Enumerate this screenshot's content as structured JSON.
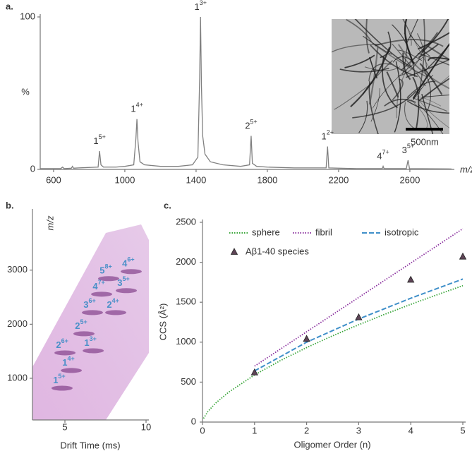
{
  "chart_data": [
    {
      "type": "line",
      "panel": "a.",
      "xlabel": "m/z",
      "ylabel": "%",
      "color": "#808080",
      "x": [
        525,
        640,
        650,
        660,
        700,
        706,
        712,
        740,
        850,
        858,
        866,
        880,
        950,
        1000,
        1050,
        1062,
        1068,
        1074,
        1085,
        1110,
        1200,
        1300,
        1380,
        1410,
        1420,
        1425,
        1430,
        1437,
        1450,
        1480,
        1550,
        1650,
        1700,
        1709,
        1716,
        1740,
        1800,
        1950,
        2130,
        2138,
        2145,
        2300,
        2445,
        2450,
        2455,
        2580,
        2590,
        2598,
        2834
      ],
      "values": [
        0.5,
        0.5,
        1.5,
        0.5,
        0.8,
        2,
        0.8,
        1,
        1.5,
        12,
        3,
        1.5,
        1.5,
        2,
        3,
        20,
        33,
        18,
        5,
        3,
        2,
        2,
        3,
        8,
        60,
        100,
        55,
        22,
        10,
        5,
        3,
        2,
        3,
        22,
        4,
        2,
        1.5,
        1,
        1,
        15,
        1,
        0.5,
        0.5,
        2,
        0.5,
        0.5,
        6,
        0.5,
        0.3
      ],
      "xlim": [
        525,
        2834
      ],
      "ylim": [
        0,
        100
      ],
      "xticks": [
        600,
        1000,
        1400,
        1800,
        2200,
        2600
      ],
      "yticks": [
        0,
        100
      ],
      "annotations": [
        {
          "text": "1",
          "superscript": "5+",
          "x": 858
        },
        {
          "text": "1",
          "superscript": "4+",
          "x": 1068
        },
        {
          "text": "1",
          "superscript": "3+",
          "x": 1425
        },
        {
          "text": "2",
          "superscript": "5+",
          "x": 1709
        },
        {
          "text": "1",
          "superscript": "2+",
          "x": 2138
        },
        {
          "text": "4",
          "superscript": "7+",
          "x": 2450
        },
        {
          "text": "3",
          "superscript": "5+",
          "x": 2590
        }
      ],
      "inset_scale_label": "500nm"
    },
    {
      "type": "heatmap",
      "panel": "b.",
      "xlabel": "Drift Time (ms)",
      "ylabel": "m/z",
      "xlim": [
        3,
        10
      ],
      "ylim": [
        230,
        4080
      ],
      "xticks": [
        5,
        10
      ],
      "yticks": [
        1000,
        2000,
        3000
      ],
      "annotations": [
        {
          "text": "1",
          "superscript": "5+",
          "x": 4.65,
          "y": 948
        },
        {
          "text": "1",
          "superscript": "4+",
          "x": 5.22,
          "y": 1275
        },
        {
          "text": "2",
          "superscript": "6+",
          "x": 4.83,
          "y": 1601
        },
        {
          "text": "2",
          "superscript": "5+",
          "x": 6.0,
          "y": 1954
        },
        {
          "text": "1",
          "superscript": "3+",
          "x": 6.57,
          "y": 1640
        },
        {
          "text": "3",
          "superscript": "6+",
          "x": 6.52,
          "y": 2346
        },
        {
          "text": "2",
          "superscript": "4+",
          "x": 7.96,
          "y": 2346
        },
        {
          "text": "4",
          "superscript": "7+",
          "x": 7.09,
          "y": 2686
        },
        {
          "text": "5",
          "superscript": "8+",
          "x": 7.52,
          "y": 2974
        },
        {
          "text": "3",
          "superscript": "5+",
          "x": 8.61,
          "y": 2752
        },
        {
          "text": "4",
          "superscript": "6+",
          "x": 8.91,
          "y": 3105
        }
      ]
    },
    {
      "type": "line",
      "panel": "c.",
      "xlabel": "Oligomer Order (n)",
      "ylabel": "CCS (Å²)",
      "xlim": [
        0,
        5
      ],
      "ylim": [
        0,
        2500
      ],
      "xticks": [
        0,
        1,
        2,
        3,
        4,
        5
      ],
      "yticks": [
        0,
        500,
        1000,
        1500,
        2000,
        2500
      ],
      "legend": "upper left",
      "series": [
        {
          "name": "sphere",
          "color": "#3aa63a",
          "linestyle": "dotted",
          "x": [
            0.02,
            0.1,
            0.25,
            0.5,
            1,
            1.5,
            2,
            2.5,
            3,
            3.5,
            4,
            4.5,
            5
          ],
          "values": [
            45,
            129,
            236,
            373,
            590,
            771,
            932,
            1080,
            1218,
            1349,
            1473,
            1592,
            1707
          ]
        },
        {
          "name": "fibril",
          "color": "#8a2f9e",
          "linestyle": "dotted",
          "x": [
            1,
            5
          ],
          "values": [
            700,
            2420
          ]
        },
        {
          "name": "isotropic",
          "color": "#3f8fc9",
          "linestyle": "dashed",
          "x": [
            1,
            2,
            3,
            4,
            5
          ],
          "values": [
            640,
            1000,
            1290,
            1550,
            1790
          ]
        },
        {
          "name": "Aβ1-40 species",
          "color": "#5e4456",
          "linestyle": "none",
          "marker": "triangle",
          "x": [
            1,
            2,
            3,
            4,
            5
          ],
          "values": [
            620,
            1040,
            1310,
            1780,
            2070
          ]
        }
      ]
    }
  ]
}
